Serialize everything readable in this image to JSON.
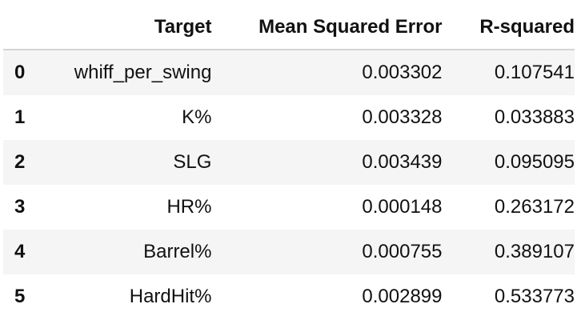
{
  "table": {
    "columns": [
      "",
      "Target",
      "Mean Squared Error",
      "R-squared"
    ],
    "rows": [
      {
        "index": "0",
        "target": "whiff_per_swing",
        "mse": "0.003302",
        "r2": "0.107541"
      },
      {
        "index": "1",
        "target": "K%",
        "mse": "0.003328",
        "r2": "0.033883"
      },
      {
        "index": "2",
        "target": "SLG",
        "mse": "0.003439",
        "r2": "0.095095"
      },
      {
        "index": "3",
        "target": "HR%",
        "mse": "0.000148",
        "r2": "0.263172"
      },
      {
        "index": "4",
        "target": "Barrel%",
        "mse": "0.000755",
        "r2": "0.389107"
      },
      {
        "index": "5",
        "target": "HardHit%",
        "mse": "0.002899",
        "r2": "0.533773"
      }
    ]
  }
}
